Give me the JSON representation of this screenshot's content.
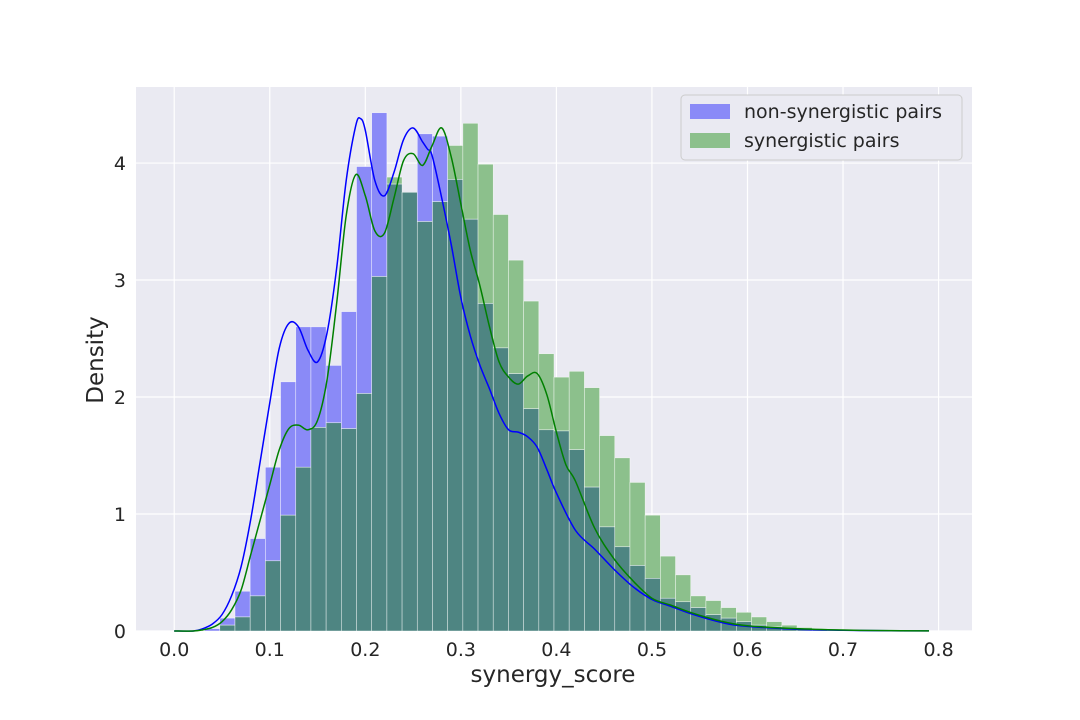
{
  "chart_data": {
    "type": "histogram",
    "title": "",
    "xlabel": "synergy_score",
    "ylabel": "Density",
    "xlim": [
      -0.04,
      0.835
    ],
    "ylim": [
      0,
      4.65
    ],
    "xticks": [
      "0.0",
      "0.1",
      "0.2",
      "0.3",
      "0.4",
      "0.5",
      "0.6",
      "0.7",
      "0.8"
    ],
    "xtick_values": [
      0.0,
      0.1,
      0.2,
      0.3,
      0.4,
      0.5,
      0.6,
      0.7,
      0.8
    ],
    "yticks": [
      "0",
      "1",
      "2",
      "3",
      "4"
    ],
    "ytick_values": [
      0,
      1,
      2,
      3,
      4
    ],
    "grid": true,
    "legend_position": "top-right",
    "bin_start": 0.0,
    "bin_width": 0.0159,
    "series": [
      {
        "name": "non-synergistic pairs",
        "color": "#0000ff",
        "bar_color": "#8a8af7",
        "values": [
          0.0,
          0.0,
          0.02,
          0.11,
          0.34,
          0.79,
          1.4,
          2.13,
          2.6,
          2.6,
          2.27,
          2.73,
          3.97,
          4.43,
          3.82,
          3.75,
          4.25,
          4.23,
          3.86,
          3.52,
          2.8,
          2.42,
          2.2,
          1.9,
          1.72,
          1.71,
          1.55,
          1.23,
          0.89,
          0.72,
          0.56,
          0.45,
          0.28,
          0.25,
          0.2,
          0.14,
          0.11,
          0.08,
          0.05,
          0.035,
          0.02,
          0.012,
          0.008,
          0.005,
          0.003,
          0.002,
          0.001,
          0.0
        ],
        "kde_x": [
          0.0,
          0.02,
          0.03,
          0.04,
          0.05,
          0.06,
          0.07,
          0.08,
          0.09,
          0.1,
          0.11,
          0.12,
          0.13,
          0.14,
          0.15,
          0.16,
          0.17,
          0.18,
          0.19,
          0.195,
          0.2,
          0.21,
          0.22,
          0.23,
          0.24,
          0.25,
          0.26,
          0.265,
          0.27,
          0.28,
          0.29,
          0.3,
          0.31,
          0.32,
          0.33,
          0.34,
          0.35,
          0.36,
          0.37,
          0.38,
          0.39,
          0.4,
          0.42,
          0.44,
          0.46,
          0.48,
          0.5,
          0.52,
          0.54,
          0.56,
          0.58,
          0.6,
          0.65,
          0.7,
          0.75,
          0.79
        ],
        "kde_y": [
          0.0,
          0.0,
          0.02,
          0.06,
          0.14,
          0.3,
          0.55,
          0.95,
          1.45,
          1.95,
          2.42,
          2.63,
          2.6,
          2.4,
          2.3,
          2.55,
          3.1,
          3.85,
          4.32,
          4.38,
          4.28,
          3.85,
          3.72,
          3.92,
          4.2,
          4.3,
          4.18,
          4.12,
          4.06,
          3.7,
          3.3,
          2.85,
          2.52,
          2.27,
          2.07,
          1.86,
          1.72,
          1.7,
          1.66,
          1.57,
          1.38,
          1.18,
          0.86,
          0.7,
          0.53,
          0.38,
          0.27,
          0.21,
          0.15,
          0.1,
          0.06,
          0.04,
          0.015,
          0.006,
          0.002,
          0.001
        ]
      },
      {
        "name": "synergistic pairs",
        "color": "#008000",
        "bar_color": "#8cc08c",
        "values": [
          0.0,
          0.0,
          0.0,
          0.05,
          0.12,
          0.3,
          0.6,
          0.99,
          1.4,
          1.74,
          1.78,
          1.73,
          2.03,
          3.03,
          3.88,
          3.75,
          3.5,
          3.67,
          4.15,
          4.34,
          3.99,
          3.56,
          3.17,
          2.82,
          2.37,
          2.17,
          2.22,
          2.08,
          1.67,
          1.48,
          1.27,
          0.99,
          0.64,
          0.48,
          0.3,
          0.26,
          0.2,
          0.16,
          0.12,
          0.08,
          0.05,
          0.03,
          0.02,
          0.012,
          0.008,
          0.005,
          0.003,
          0.001
        ],
        "kde_x": [
          0.0,
          0.02,
          0.03,
          0.04,
          0.05,
          0.06,
          0.07,
          0.08,
          0.09,
          0.1,
          0.11,
          0.12,
          0.13,
          0.14,
          0.15,
          0.16,
          0.17,
          0.18,
          0.19,
          0.2,
          0.21,
          0.22,
          0.23,
          0.24,
          0.25,
          0.26,
          0.27,
          0.28,
          0.29,
          0.3,
          0.31,
          0.32,
          0.33,
          0.34,
          0.35,
          0.36,
          0.37,
          0.38,
          0.39,
          0.4,
          0.41,
          0.42,
          0.44,
          0.46,
          0.48,
          0.5,
          0.52,
          0.54,
          0.56,
          0.58,
          0.6,
          0.65,
          0.7,
          0.75,
          0.79
        ],
        "kde_y": [
          0.0,
          0.0,
          0.01,
          0.03,
          0.08,
          0.18,
          0.35,
          0.65,
          0.95,
          1.25,
          1.55,
          1.73,
          1.76,
          1.72,
          1.8,
          2.15,
          2.8,
          3.55,
          3.9,
          3.72,
          3.42,
          3.4,
          3.7,
          4.02,
          4.08,
          3.98,
          4.15,
          4.3,
          4.05,
          3.65,
          3.25,
          2.95,
          2.6,
          2.3,
          2.17,
          2.11,
          2.18,
          2.2,
          2.02,
          1.7,
          1.42,
          1.28,
          0.88,
          0.62,
          0.43,
          0.28,
          0.22,
          0.16,
          0.11,
          0.07,
          0.045,
          0.02,
          0.008,
          0.003,
          0.001
        ]
      }
    ],
    "overlap_color": "#4e8582"
  }
}
